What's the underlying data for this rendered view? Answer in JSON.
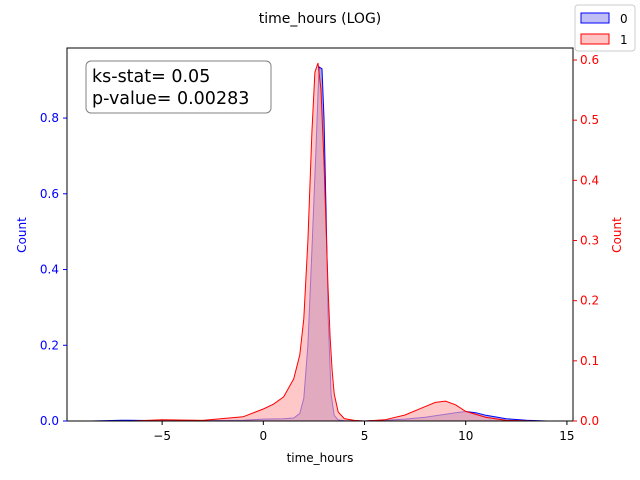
{
  "chart_data": {
    "type": "area",
    "title": "time_hours (LOG)",
    "xlabel": "time_hours",
    "ylabel_left": "Count",
    "ylabel_right": "Count",
    "xlim": [
      -9.7,
      15.3
    ],
    "ylim_left": [
      0,
      0.985
    ],
    "ylim_right": [
      0,
      0.62
    ],
    "x_ticks": [
      -5,
      0,
      5,
      10,
      15
    ],
    "y_ticks_left": [
      0.0,
      0.2,
      0.4,
      0.6,
      0.8
    ],
    "y_ticks_right": [
      0.0,
      0.1,
      0.2,
      0.3,
      0.4,
      0.5,
      0.6
    ],
    "legend_placement": "top-right",
    "annotation": {
      "line1": "ks-stat= 0.05",
      "line2": "p-value= 0.00283"
    },
    "series": [
      {
        "name": "0",
        "axis": "left",
        "color": "#0000ff",
        "fill": "#7b7bd6",
        "x": [
          -8.5,
          -7.0,
          -5.0,
          -3.0,
          -1.0,
          0.0,
          1.0,
          1.5,
          1.8,
          2.0,
          2.2,
          2.4,
          2.6,
          2.75,
          2.9,
          3.0,
          3.1,
          3.2,
          3.35,
          3.5,
          3.7,
          4.0,
          5.0,
          6.0,
          7.0,
          8.0,
          9.0,
          9.5,
          10.0,
          10.5,
          11.0,
          12.0,
          13.0,
          14.0
        ],
        "y": [
          0.0,
          0.002,
          0.001,
          0.001,
          0.002,
          0.005,
          0.006,
          0.008,
          0.02,
          0.06,
          0.2,
          0.45,
          0.72,
          0.935,
          0.93,
          0.8,
          0.55,
          0.28,
          0.07,
          0.015,
          0.003,
          0.001,
          0.0,
          0.002,
          0.005,
          0.01,
          0.018,
          0.022,
          0.025,
          0.022,
          0.015,
          0.006,
          0.002,
          0.0
        ]
      },
      {
        "name": "1",
        "axis": "right",
        "color": "#ff0000",
        "fill": "#ffaaaa",
        "x": [
          -6.5,
          -5.0,
          -3.0,
          -1.0,
          0.0,
          0.5,
          1.0,
          1.5,
          1.8,
          2.0,
          2.2,
          2.4,
          2.55,
          2.7,
          2.85,
          3.0,
          3.1,
          3.2,
          3.3,
          3.4,
          3.5,
          3.7,
          4.0,
          4.5,
          5.0,
          6.0,
          7.0,
          8.0,
          8.5,
          9.0,
          9.5,
          10.0,
          11.0,
          12.0,
          13.5
        ],
        "y": [
          0.0,
          0.002,
          0.001,
          0.007,
          0.02,
          0.028,
          0.04,
          0.07,
          0.11,
          0.17,
          0.3,
          0.48,
          0.58,
          0.595,
          0.55,
          0.43,
          0.32,
          0.22,
          0.14,
          0.085,
          0.045,
          0.015,
          0.004,
          0.001,
          0.0,
          0.002,
          0.01,
          0.024,
          0.031,
          0.033,
          0.027,
          0.016,
          0.006,
          0.001,
          0.0
        ]
      }
    ]
  }
}
